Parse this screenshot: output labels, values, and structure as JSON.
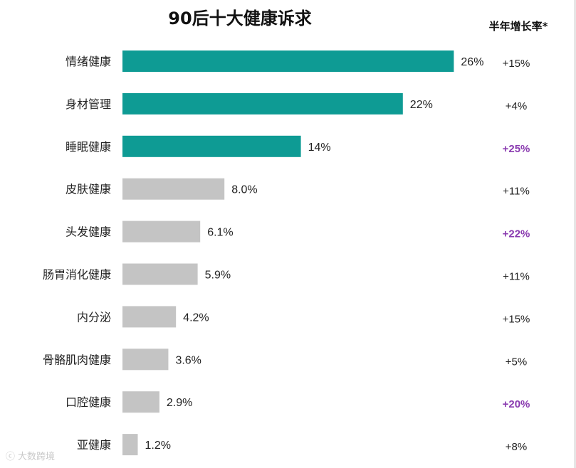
{
  "chart_data": {
    "type": "bar",
    "orientation": "horizontal",
    "title": "90后十大健康诉求",
    "categories": [
      "情绪健康",
      "身材管理",
      "睡眠健康",
      "皮肤健康",
      "头发健康",
      "肠胃消化健康",
      "内分泌",
      "骨骼肌肉健康",
      "口腔健康",
      "亚健康"
    ],
    "values": [
      26,
      22,
      14,
      8.0,
      6.1,
      5.9,
      4.2,
      3.6,
      2.9,
      1.2
    ],
    "value_labels": [
      "26%",
      "22%",
      "14%",
      "8.0%",
      "6.1%",
      "5.9%",
      "4.2%",
      "3.6%",
      "2.9%",
      "1.2%"
    ],
    "highlight_top": 3,
    "growth_header": "半年增长率*",
    "growth": [
      "+15%",
      "+4%",
      "+25%",
      "+11%",
      "+22%",
      "+11%",
      "+15%",
      "+5%",
      "+20%",
      "+8%"
    ],
    "growth_highlighted": [
      false,
      false,
      true,
      false,
      true,
      false,
      false,
      false,
      true,
      false
    ],
    "colors": {
      "highlight": "#0e9b94",
      "default": "#c4c4c4",
      "growth_highlight": "#8a3bb0"
    }
  },
  "watermark": {
    "text": "大数跨境",
    "icon": "brand-logo-icon"
  }
}
